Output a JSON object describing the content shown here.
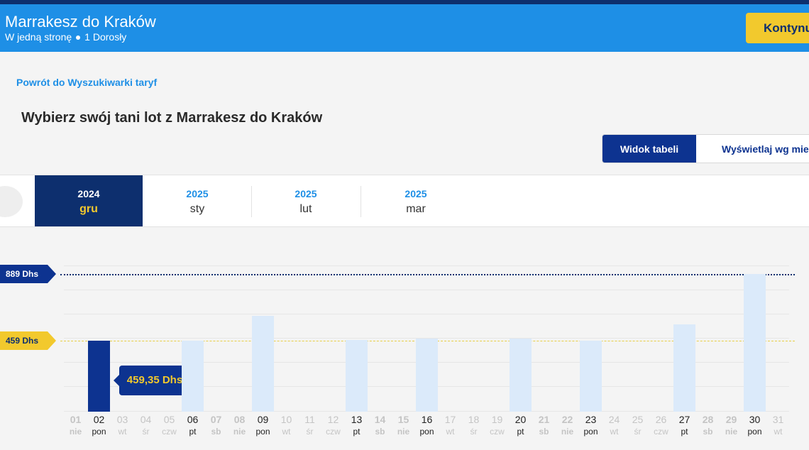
{
  "header": {
    "title": "Marrakesz do Kraków",
    "trip_type": "W jedną stronę",
    "passengers": "1 Dorosły",
    "continue_label": "Kontynuuj"
  },
  "back_link": "Powrót do Wyszukiwarki taryf",
  "page_title": "Wybierz swój tani lot z Marrakesz do Kraków",
  "view_toggle": {
    "table_label": "Widok tabeli",
    "month_label": "Wyświetlaj wg miesięcy"
  },
  "months": [
    {
      "year": "2024",
      "month": "gru",
      "active": true
    },
    {
      "year": "2025",
      "month": "sty",
      "active": false
    },
    {
      "year": "2025",
      "month": "lut",
      "active": false
    },
    {
      "year": "2025",
      "month": "mar",
      "active": false
    }
  ],
  "price_markers": {
    "high": "889 Dhs",
    "low": "459 Dhs"
  },
  "tooltip": "459,35 Dhs",
  "chart_data": {
    "type": "bar",
    "unit": "Dhs",
    "selected_day": "02",
    "days": [
      {
        "d": "01",
        "w": "nie",
        "available": false,
        "price": null
      },
      {
        "d": "02",
        "w": "pon",
        "available": true,
        "price": 459.35
      },
      {
        "d": "03",
        "w": "wt",
        "available": false,
        "price": null
      },
      {
        "d": "04",
        "w": "śr",
        "available": false,
        "price": null
      },
      {
        "d": "05",
        "w": "czw",
        "available": false,
        "price": null
      },
      {
        "d": "06",
        "w": "pt",
        "available": true,
        "price": 460
      },
      {
        "d": "07",
        "w": "sb",
        "available": false,
        "price": null
      },
      {
        "d": "08",
        "w": "nie",
        "available": false,
        "price": null
      },
      {
        "d": "09",
        "w": "pon",
        "available": true,
        "price": 620
      },
      {
        "d": "10",
        "w": "wt",
        "available": false,
        "price": null
      },
      {
        "d": "11",
        "w": "śr",
        "available": false,
        "price": null
      },
      {
        "d": "12",
        "w": "czw",
        "available": false,
        "price": null
      },
      {
        "d": "13",
        "w": "pt",
        "available": true,
        "price": 465
      },
      {
        "d": "14",
        "w": "sb",
        "available": false,
        "price": null
      },
      {
        "d": "15",
        "w": "nie",
        "available": false,
        "price": null
      },
      {
        "d": "16",
        "w": "pon",
        "available": true,
        "price": 473
      },
      {
        "d": "17",
        "w": "wt",
        "available": false,
        "price": null
      },
      {
        "d": "18",
        "w": "śr",
        "available": false,
        "price": null
      },
      {
        "d": "19",
        "w": "czw",
        "available": false,
        "price": null
      },
      {
        "d": "20",
        "w": "pt",
        "available": true,
        "price": 470
      },
      {
        "d": "21",
        "w": "sb",
        "available": false,
        "price": null
      },
      {
        "d": "22",
        "w": "nie",
        "available": false,
        "price": null
      },
      {
        "d": "23",
        "w": "pon",
        "available": true,
        "price": 460
      },
      {
        "d": "24",
        "w": "wt",
        "available": false,
        "price": null
      },
      {
        "d": "25",
        "w": "śr",
        "available": false,
        "price": null
      },
      {
        "d": "26",
        "w": "czw",
        "available": false,
        "price": null
      },
      {
        "d": "27",
        "w": "pt",
        "available": true,
        "price": 565
      },
      {
        "d": "28",
        "w": "sb",
        "available": false,
        "price": null
      },
      {
        "d": "29",
        "w": "nie",
        "available": false,
        "price": null
      },
      {
        "d": "30",
        "w": "pon",
        "available": true,
        "price": 889
      },
      {
        "d": "31",
        "w": "wt",
        "available": false,
        "price": null
      }
    ]
  }
}
